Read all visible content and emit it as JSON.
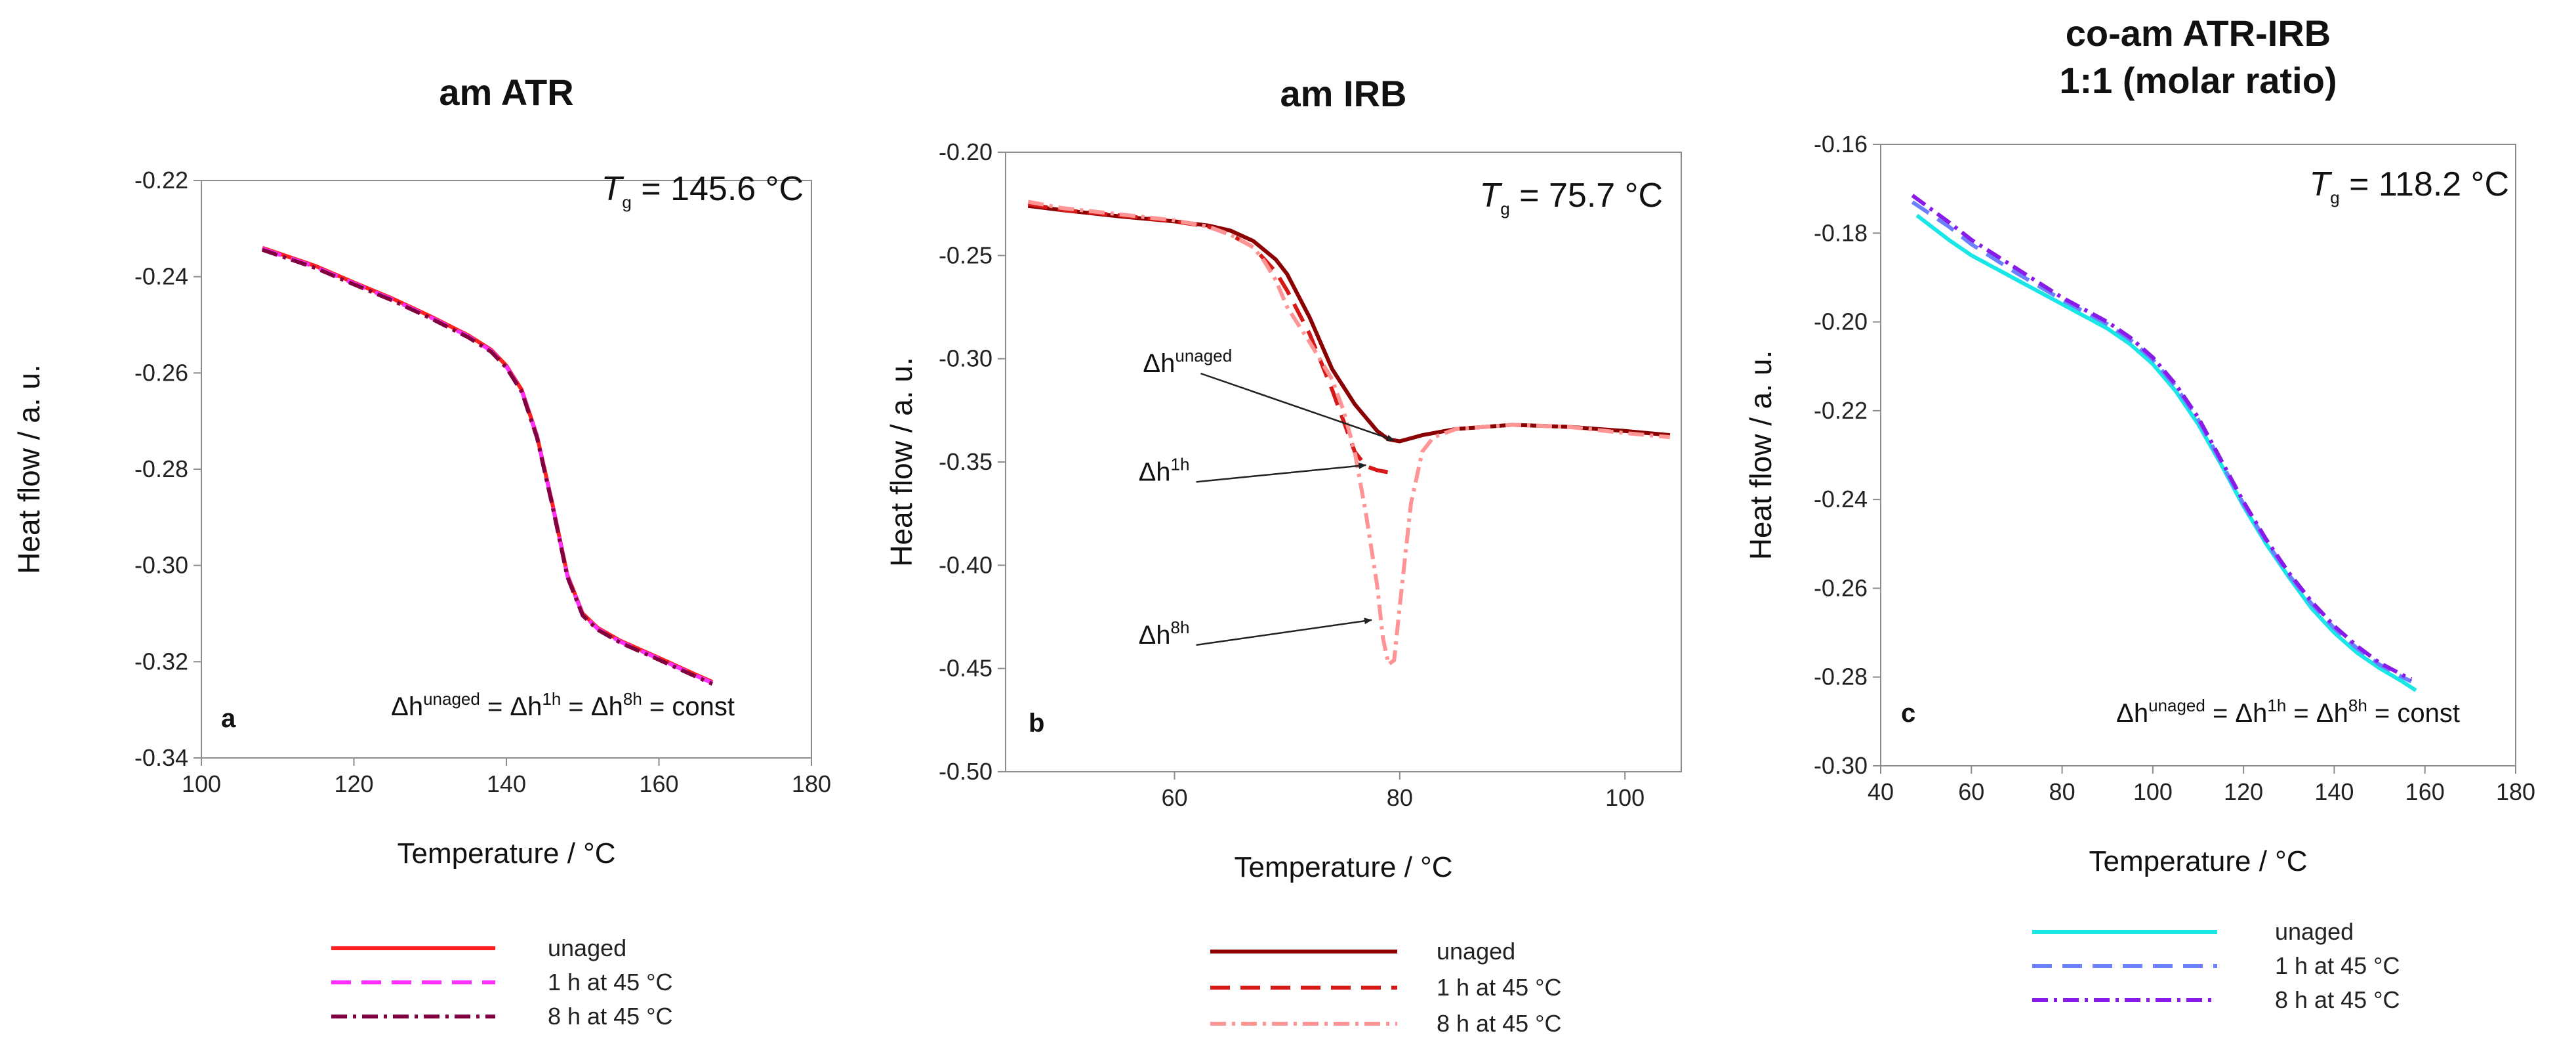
{
  "chart_data": [
    {
      "type": "line",
      "panel_label": "a",
      "title_lines": [
        "am ATR"
      ],
      "xlabel": "Temperature / °C",
      "ylabel": "Heat flow / a. u.",
      "xlim": [
        100,
        180
      ],
      "ylim": [
        -0.34,
        -0.22
      ],
      "xticks": [
        "100",
        "120",
        "140",
        "160",
        "180"
      ],
      "yticks": [
        "-0.22",
        "-0.24",
        "-0.26",
        "-0.28",
        "-0.30",
        "-0.32",
        "-0.34"
      ],
      "tg": {
        "prefix": "T",
        "sub": "g",
        "value": " = 145.6 °C"
      },
      "formula": {
        "d1": "Δh",
        "s1": "unaged",
        "d2": " = Δh",
        "s2": "1h",
        "d3": " = Δh",
        "s3": "8h",
        "tail": "  = const"
      },
      "series": [
        {
          "name": "unaged",
          "color": "#ff2020",
          "dash": "solid",
          "x": [
            108,
            115,
            120,
            125,
            130,
            135,
            138,
            140,
            142,
            144,
            146,
            148,
            150,
            152,
            155,
            160,
            165,
            167
          ],
          "y": [
            -0.234,
            -0.2378,
            -0.2412,
            -0.2445,
            -0.2482,
            -0.2522,
            -0.2552,
            -0.2585,
            -0.2635,
            -0.273,
            -0.287,
            -0.302,
            -0.31,
            -0.313,
            -0.3157,
            -0.3192,
            -0.3228,
            -0.3242
          ]
        },
        {
          "name": "1 h at 45 °C",
          "color": "#ff30ff",
          "dash": "dash",
          "x": [
            108,
            115,
            120,
            125,
            130,
            135,
            138,
            140,
            142,
            144,
            146,
            148,
            150,
            152,
            155,
            160,
            165,
            167
          ],
          "y": [
            -0.2342,
            -0.238,
            -0.2414,
            -0.2447,
            -0.2484,
            -0.2524,
            -0.2554,
            -0.2587,
            -0.2637,
            -0.2732,
            -0.2872,
            -0.3022,
            -0.3102,
            -0.3132,
            -0.3159,
            -0.3194,
            -0.323,
            -0.3244
          ]
        },
        {
          "name": "8 h at 45 °C",
          "color": "#800040",
          "dash": "dashdot",
          "x": [
            108,
            115,
            120,
            125,
            130,
            135,
            138,
            140,
            142,
            144,
            146,
            148,
            150,
            152,
            155,
            160,
            165,
            167
          ],
          "y": [
            -0.2344,
            -0.2382,
            -0.2416,
            -0.2449,
            -0.2486,
            -0.2526,
            -0.2556,
            -0.2589,
            -0.2639,
            -0.2734,
            -0.2874,
            -0.3024,
            -0.3104,
            -0.3134,
            -0.3161,
            -0.3196,
            -0.3232,
            -0.3246
          ]
        }
      ]
    },
    {
      "type": "line",
      "panel_label": "b",
      "title_lines": [
        "am IRB"
      ],
      "xlabel": "Temperature / °C",
      "ylabel": "Heat flow / a. u.",
      "xlim": [
        45,
        105
      ],
      "ylim": [
        -0.5,
        -0.2
      ],
      "xticks": [
        "60",
        "80",
        "100"
      ],
      "xtick_values": [
        60,
        80,
        100
      ],
      "yticks": [
        "-0.20",
        "-0.25",
        "-0.30",
        "-0.35",
        "-0.40",
        "-0.45",
        "-0.50"
      ],
      "tg": {
        "prefix": "T",
        "sub": "g",
        "value": " = 75.7 °C"
      },
      "annotations": [
        {
          "base": "Δh",
          "sup": "unaged",
          "tx": 57.2,
          "ty": -0.3065,
          "ax": 79.5,
          "ay": -0.3395
        },
        {
          "base": "Δh",
          "sup": "1h",
          "tx": 56.8,
          "ty": -0.359,
          "ax": 77.0,
          "ay": -0.3515
        },
        {
          "base": "Δh",
          "sup": "8h",
          "tx": 56.8,
          "ty": -0.438,
          "ax": 77.5,
          "ay": -0.4265
        }
      ],
      "series": [
        {
          "name": "unaged",
          "color": "#8b0000",
          "dash": "solid",
          "x": [
            47,
            50,
            55,
            60,
            63,
            65,
            67,
            69,
            70,
            72,
            74,
            76,
            78,
            79,
            80,
            82,
            85,
            90,
            95,
            100,
            104
          ],
          "y": [
            -0.226,
            -0.228,
            -0.231,
            -0.2335,
            -0.2355,
            -0.238,
            -0.243,
            -0.252,
            -0.259,
            -0.28,
            -0.305,
            -0.322,
            -0.335,
            -0.339,
            -0.34,
            -0.337,
            -0.334,
            -0.332,
            -0.333,
            -0.335,
            -0.337
          ]
        },
        {
          "name": "1 h at 45 °C",
          "color": "#d61818",
          "dash": "dash",
          "x": [
            47,
            50,
            55,
            60,
            63,
            65,
            67,
            69,
            70,
            72,
            74,
            75,
            76,
            77,
            78,
            79
          ],
          "y": [
            -0.225,
            -0.228,
            -0.2305,
            -0.2335,
            -0.236,
            -0.24,
            -0.246,
            -0.258,
            -0.267,
            -0.288,
            -0.315,
            -0.33,
            -0.345,
            -0.352,
            -0.354,
            -0.355
          ]
        },
        {
          "name": "8 h at 45 °C",
          "color": "#ff9494",
          "dash": "dashdot",
          "x": [
            47,
            50,
            55,
            60,
            63,
            65,
            67,
            68,
            69,
            70,
            72,
            74,
            75,
            76,
            77,
            78,
            78.5,
            79,
            79.5,
            80,
            81,
            82,
            83,
            85,
            90,
            95,
            100,
            104
          ],
          "y": [
            -0.224,
            -0.227,
            -0.23,
            -0.233,
            -0.236,
            -0.24,
            -0.246,
            -0.253,
            -0.262,
            -0.275,
            -0.292,
            -0.31,
            -0.325,
            -0.345,
            -0.375,
            -0.41,
            -0.435,
            -0.448,
            -0.446,
            -0.42,
            -0.37,
            -0.345,
            -0.338,
            -0.334,
            -0.332,
            -0.333,
            -0.336,
            -0.338
          ]
        }
      ]
    },
    {
      "type": "line",
      "panel_label": "c",
      "title_lines": [
        "co-am ATR-IRB",
        "1:1 (molar ratio)"
      ],
      "xlabel": "Temperature / °C",
      "ylabel": "Heat flow / a. u.",
      "xlim": [
        40,
        180
      ],
      "ylim": [
        -0.3,
        -0.16
      ],
      "xticks": [
        "40",
        "60",
        "80",
        "100",
        "120",
        "140",
        "160",
        "180"
      ],
      "yticks": [
        "-0.16",
        "-0.18",
        "-0.20",
        "-0.22",
        "-0.24",
        "-0.26",
        "-0.28",
        "-0.30"
      ],
      "tg": {
        "prefix": "T",
        "sub": "g",
        "value": " = 118.2 °C"
      },
      "formula": {
        "d1": "Δh",
        "s1": "unaged",
        "d2": " = Δh",
        "s2": "1h",
        "d3": " = Δh",
        "s3": "8h",
        "tail": "  = const"
      },
      "series": [
        {
          "name": "unaged",
          "color": "#19e6e6",
          "dash": "solid",
          "x": [
            48,
            55,
            60,
            70,
            80,
            90,
            95,
            100,
            105,
            110,
            115,
            120,
            125,
            130,
            135,
            140,
            145,
            150,
            155,
            158
          ],
          "y": [
            -0.176,
            -0.1815,
            -0.185,
            -0.1905,
            -0.196,
            -0.2015,
            -0.205,
            -0.2095,
            -0.2155,
            -0.223,
            -0.232,
            -0.2415,
            -0.25,
            -0.2575,
            -0.2645,
            -0.27,
            -0.2745,
            -0.278,
            -0.281,
            -0.283
          ]
        },
        {
          "name": "1 h at 45 °C",
          "color": "#6b80ff",
          "dash": "dash",
          "x": [
            47,
            55,
            60,
            70,
            80,
            90,
            95,
            100,
            105,
            110,
            115,
            120,
            125,
            130,
            135,
            140,
            145,
            150,
            155,
            157
          ],
          "y": [
            -0.173,
            -0.1785,
            -0.1825,
            -0.189,
            -0.195,
            -0.2005,
            -0.204,
            -0.2085,
            -0.2145,
            -0.222,
            -0.2315,
            -0.241,
            -0.2495,
            -0.257,
            -0.2635,
            -0.269,
            -0.2735,
            -0.2772,
            -0.28,
            -0.281
          ]
        },
        {
          "name": "8 h at 45 °C",
          "color": "#8a1ae8",
          "dash": "dashdot",
          "x": [
            47,
            55,
            60,
            70,
            80,
            90,
            95,
            100,
            105,
            110,
            115,
            120,
            125,
            130,
            135,
            140,
            145,
            150,
            155,
            157
          ],
          "y": [
            -0.1715,
            -0.1775,
            -0.1815,
            -0.188,
            -0.1945,
            -0.2,
            -0.2035,
            -0.208,
            -0.214,
            -0.2215,
            -0.231,
            -0.2405,
            -0.249,
            -0.2565,
            -0.263,
            -0.2685,
            -0.273,
            -0.2768,
            -0.2795,
            -0.2805
          ]
        }
      ]
    }
  ]
}
